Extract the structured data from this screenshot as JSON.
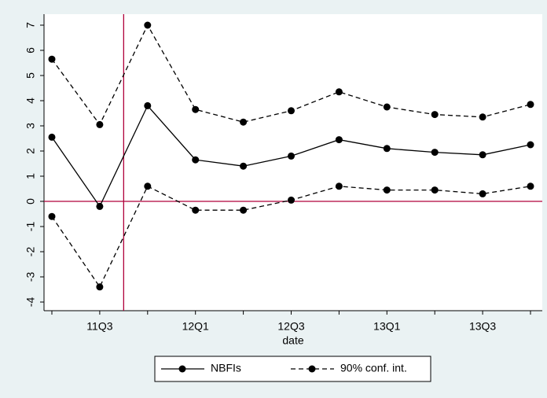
{
  "chart_data": {
    "type": "line",
    "categories": [
      null,
      "11Q3",
      null,
      "12Q1",
      null,
      "12Q3",
      null,
      "13Q1",
      null,
      "13Q3",
      null
    ],
    "x_label": "date",
    "series": [
      {
        "name": "NBFIs",
        "color": "#000000",
        "style": "solid",
        "values": [
          2.55,
          -0.2,
          3.8,
          1.65,
          1.4,
          1.8,
          2.45,
          2.1,
          1.95,
          1.85,
          2.25
        ]
      },
      {
        "name": "90% conf. int.",
        "color": "#000000",
        "style": "dashed",
        "upper": [
          5.65,
          3.05,
          7.0,
          3.65,
          3.15,
          3.6,
          4.35,
          3.75,
          3.45,
          3.35,
          3.85
        ],
        "lower": [
          -0.6,
          -3.4,
          0.6,
          -0.35,
          -0.35,
          0.05,
          0.6,
          0.45,
          0.45,
          0.3,
          0.6
        ]
      }
    ],
    "ylim": [
      -4,
      7
    ],
    "yticks": [
      -4,
      -3,
      -2,
      -1,
      0,
      1,
      2,
      3,
      4,
      5,
      6,
      7
    ],
    "yline": 0,
    "xline": 1.5,
    "refline_color": "#b0003a",
    "legend": "bottom"
  }
}
